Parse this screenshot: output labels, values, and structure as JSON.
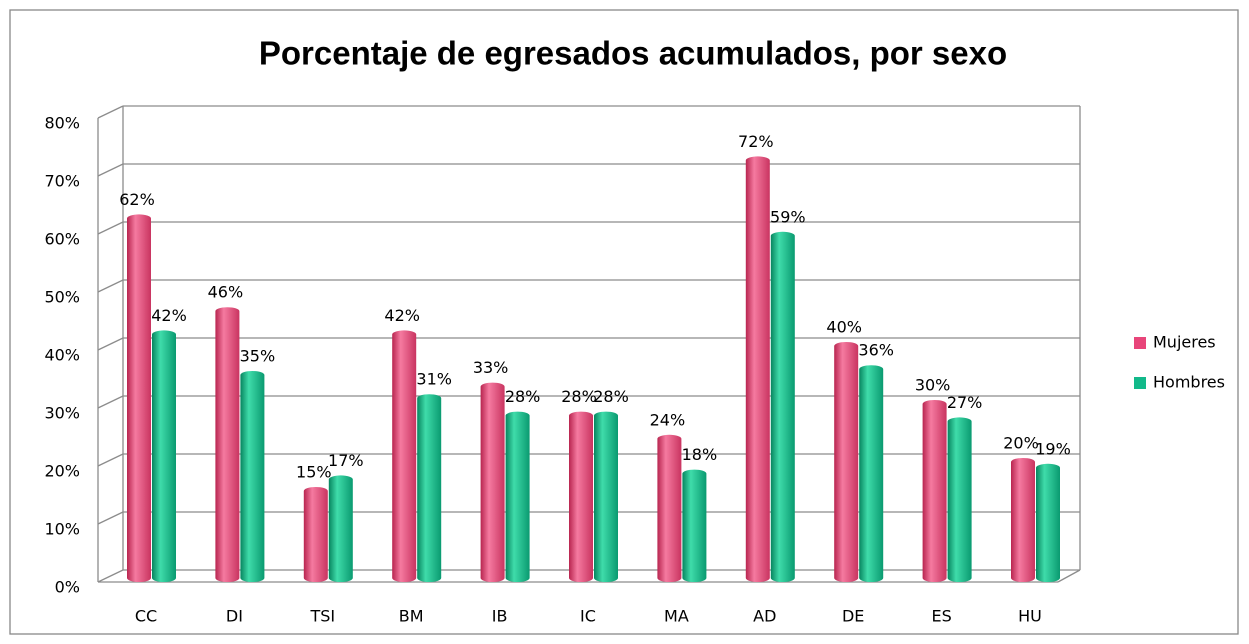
{
  "chart_data": {
    "type": "bar",
    "title": "Porcentaje de egresados acumulados, por sexo",
    "categories": [
      "CC",
      "DI",
      "TSI",
      "BM",
      "IB",
      "IC",
      "MA",
      "AD",
      "DE",
      "ES",
      "HU"
    ],
    "series": [
      {
        "name": "Mujeres",
        "color": "#e8457a",
        "values": [
          62,
          46,
          15,
          42,
          33,
          28,
          24,
          72,
          40,
          30,
          20
        ],
        "value_labels": [
          "62%",
          "46%",
          "15%",
          "42%",
          "33%",
          "28%",
          "24%",
          "72%",
          "40%",
          "30%",
          "20%"
        ]
      },
      {
        "name": "Hombres",
        "color": "#12b98a",
        "values": [
          42,
          35,
          17,
          31,
          28,
          28,
          18,
          59,
          36,
          27,
          19
        ],
        "value_labels": [
          "42%",
          "35%",
          "17%",
          "31%",
          "28%",
          "28%",
          "18%",
          "59%",
          "36%",
          "27%",
          "19%"
        ]
      }
    ],
    "ylim": [
      0,
      80
    ],
    "yticks": [
      {
        "value": 0,
        "label": "0%"
      },
      {
        "value": 10,
        "label": "10%"
      },
      {
        "value": 20,
        "label": "20%"
      },
      {
        "value": 30,
        "label": "30%"
      },
      {
        "value": 40,
        "label": "40%"
      },
      {
        "value": 50,
        "label": "50%"
      },
      {
        "value": 60,
        "label": "60%"
      },
      {
        "value": 70,
        "label": "70%"
      },
      {
        "value": 80,
        "label": "80%"
      }
    ],
    "grid": true,
    "legend": "right"
  }
}
